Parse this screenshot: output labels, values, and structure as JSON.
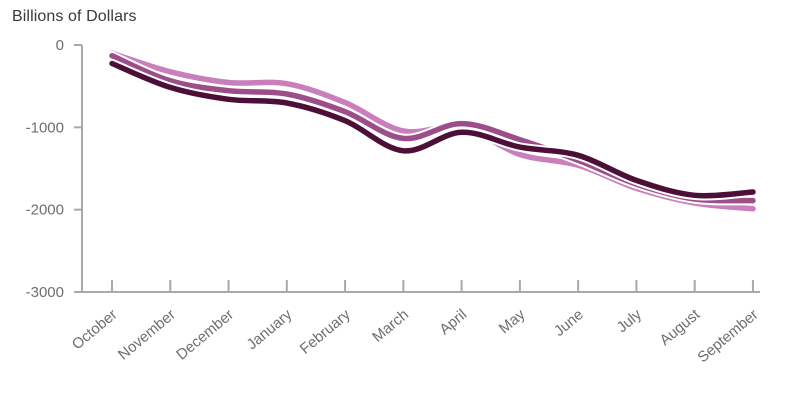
{
  "title": "Billions of Dollars",
  "colors": {
    "background": "#ffffff",
    "title_text": "#3a3a3a",
    "axis_line": "#a9a9a9",
    "tick_label": "#6e6e6e",
    "series_pink": "#c87fbb",
    "series_purple": "#9c4e89",
    "series_dark_plum": "#4c1038",
    "line_halo": "#ffffff"
  },
  "chart_data": {
    "type": "line",
    "title": "Billions of Dollars",
    "xlabel": "",
    "ylabel": "Billions of Dollars",
    "categories": [
      "October",
      "November",
      "December",
      "January",
      "February",
      "March",
      "April",
      "May",
      "June",
      "July",
      "August",
      "September"
    ],
    "series": [
      {
        "name": "pink-line",
        "color": "#c87fbb",
        "values": [
          -100,
          -325,
          -455,
          -470,
          -700,
          -1045,
          -995,
          -1330,
          -1460,
          -1740,
          -1920,
          -1990
        ]
      },
      {
        "name": "purple-line",
        "color": "#9c4e89",
        "values": [
          -130,
          -435,
          -555,
          -595,
          -810,
          -1135,
          -955,
          -1150,
          -1400,
          -1690,
          -1870,
          -1890
        ]
      },
      {
        "name": "dark-plum-line",
        "color": "#4c1038",
        "values": [
          -225,
          -515,
          -660,
          -705,
          -920,
          -1285,
          -1060,
          -1240,
          -1340,
          -1645,
          -1825,
          -1785
        ]
      }
    ],
    "ylim": [
      -3000,
      0
    ],
    "yticks": [
      0,
      -1000,
      -2000,
      -3000
    ],
    "ytick_labels": [
      "0",
      "-1000",
      "-2000",
      "-3000"
    ],
    "grid": false,
    "legend": false,
    "x_label_rotation_deg": -40
  }
}
